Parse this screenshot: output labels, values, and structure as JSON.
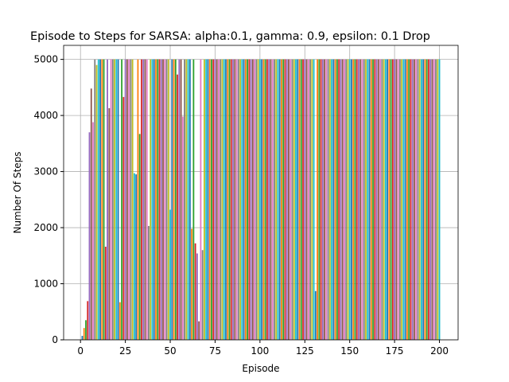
{
  "chart_data": {
    "type": "bar",
    "title": "Episode to Steps for SARSA: alpha:0.1, gamma: 0.9, epsilon: 0.1 Drop",
    "xlabel": "Episode",
    "ylabel": "Number Of Steps",
    "x": [
      1,
      2,
      3,
      4,
      5,
      6,
      7,
      8,
      9,
      10,
      11,
      12,
      13,
      14,
      15,
      16,
      17,
      18,
      19,
      20,
      21,
      22,
      23,
      24,
      25,
      26,
      27,
      28,
      29,
      30,
      31,
      32,
      33,
      34,
      35,
      36,
      37,
      38,
      39,
      40,
      41,
      42,
      43,
      44,
      45,
      46,
      47,
      48,
      49,
      50,
      51,
      52,
      53,
      54,
      55,
      56,
      57,
      58,
      59,
      60,
      61,
      62,
      63,
      64,
      65,
      66,
      67,
      68,
      69,
      70,
      71,
      72,
      73,
      74,
      75,
      76,
      77,
      78,
      79,
      80,
      81,
      82,
      83,
      84,
      85,
      86,
      87,
      88,
      89,
      90,
      91,
      92,
      93,
      94,
      95,
      96,
      97,
      98,
      99,
      100,
      101,
      102,
      103,
      104,
      105,
      106,
      107,
      108,
      109,
      110,
      111,
      112,
      113,
      114,
      115,
      116,
      117,
      118,
      119,
      120,
      121,
      122,
      123,
      124,
      125,
      126,
      127,
      128,
      129,
      130,
      131,
      132,
      133,
      134,
      135,
      136,
      137,
      138,
      139,
      140,
      141,
      142,
      143,
      144,
      145,
      146,
      147,
      148,
      149,
      150,
      151,
      152,
      153,
      154,
      155,
      156,
      157,
      158,
      159,
      160,
      161,
      162,
      163,
      164,
      165,
      166,
      167,
      168,
      169,
      170,
      171,
      172,
      173,
      174,
      175,
      176,
      177,
      178,
      179,
      180,
      181,
      182,
      183,
      184,
      185,
      186,
      187,
      188,
      189,
      190,
      191,
      192,
      193,
      194,
      195,
      196,
      197,
      198,
      199,
      200
    ],
    "values": [
      70,
      210,
      350,
      690,
      3700,
      4480,
      3880,
      5000,
      4900,
      5000,
      5000,
      5000,
      5000,
      1660,
      5000,
      4130,
      5000,
      5000,
      5000,
      5000,
      5000,
      670,
      5000,
      4330,
      5000,
      5000,
      5000,
      5000,
      5000,
      2970,
      2950,
      5000,
      3670,
      5000,
      5000,
      5000,
      5000,
      2030,
      5000,
      5000,
      5000,
      5000,
      5000,
      5000,
      5000,
      5000,
      5000,
      5000,
      5000,
      2320,
      5000,
      5000,
      5000,
      4730,
      5000,
      5000,
      3980,
      5000,
      5000,
      5000,
      5000,
      1980,
      5000,
      1720,
      1540,
      330,
      5000,
      1600,
      5000,
      5000,
      5000,
      5000,
      5000,
      5000,
      5000,
      5000,
      5000,
      5000,
      5000,
      5000,
      5000,
      5000,
      5000,
      5000,
      5000,
      5000,
      5000,
      5000,
      5000,
      5000,
      5000,
      5000,
      5000,
      5000,
      5000,
      5000,
      5000,
      5000,
      5000,
      5000,
      5000,
      5000,
      5000,
      5000,
      5000,
      5000,
      5000,
      5000,
      5000,
      5000,
      5000,
      5000,
      5000,
      5000,
      5000,
      5000,
      5000,
      5000,
      5000,
      5000,
      5000,
      5000,
      5000,
      5000,
      5000,
      5000,
      5000,
      5000,
      5000,
      5000,
      870,
      5000,
      5000,
      5000,
      5000,
      5000,
      5000,
      5000,
      5000,
      5000,
      5000,
      5000,
      5000,
      5000,
      5000,
      5000,
      5000,
      5000,
      5000,
      5000,
      5000,
      5000,
      5000,
      5000,
      5000,
      5000,
      5000,
      5000,
      5000,
      5000,
      5000,
      5000,
      5000,
      5000,
      5000,
      5000,
      5000,
      5000,
      5000,
      5000,
      5000,
      5000,
      5000,
      5000,
      5000,
      5000,
      5000,
      5000,
      5000,
      5000,
      5000,
      5000,
      5000,
      5000,
      5000,
      5000,
      5000,
      5000,
      5000,
      5000,
      5000,
      5000,
      5000,
      5000,
      5000,
      5000,
      5000,
      5000,
      5000,
      5000
    ],
    "colors": [
      "#1f77b4",
      "#ff7f0e",
      "#2ca02c",
      "#d62728",
      "#9467bd",
      "#8c564b",
      "#e377c2",
      "#7f7f7f",
      "#bcbd22",
      "#17becf"
    ],
    "xlim": [
      -9.4,
      210.4
    ],
    "ylim": [
      0,
      5250
    ],
    "xticks": [
      0,
      25,
      50,
      75,
      100,
      125,
      150,
      175,
      200
    ],
    "yticks": [
      0,
      1000,
      2000,
      3000,
      4000,
      5000
    ],
    "grid": true
  }
}
